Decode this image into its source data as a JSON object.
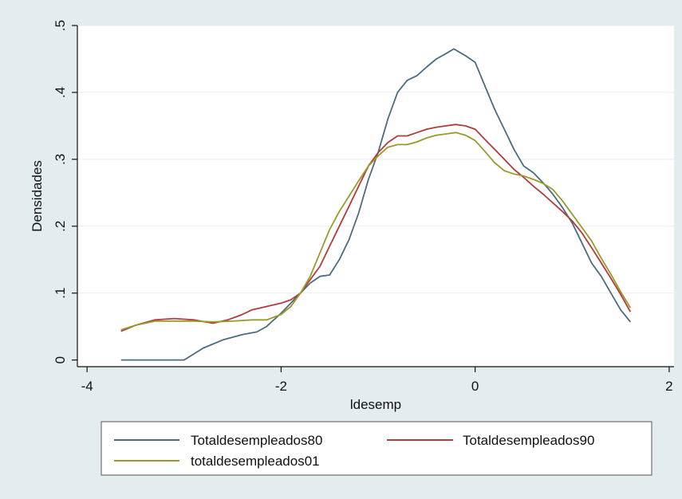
{
  "chart_data": {
    "type": "line",
    "title": "",
    "xlabel": "ldesemp",
    "ylabel": "Densidades",
    "xlim": [
      -4.1,
      2.05
    ],
    "ylim": [
      -0.01,
      0.5
    ],
    "x_ticks": [
      -4,
      -2,
      0,
      2
    ],
    "x_tick_labels": [
      "-4",
      "-2",
      "0",
      "2"
    ],
    "y_ticks": [
      0,
      0.1,
      0.2,
      0.3,
      0.4,
      0.5
    ],
    "y_tick_labels": [
      "0",
      ".1",
      ".2",
      ".3",
      ".4",
      ".5"
    ],
    "grid": true,
    "legend_position": "bottom",
    "series": [
      {
        "name": "Totaldesempleados80",
        "color": "#4a6b82",
        "points": [
          [
            -3.65,
            0.0
          ],
          [
            -3.3,
            0.0
          ],
          [
            -3.0,
            0.0
          ],
          [
            -2.8,
            0.018
          ],
          [
            -2.6,
            0.03
          ],
          [
            -2.4,
            0.038
          ],
          [
            -2.25,
            0.042
          ],
          [
            -2.15,
            0.05
          ],
          [
            -2.0,
            0.07
          ],
          [
            -1.9,
            0.085
          ],
          [
            -1.8,
            0.1
          ],
          [
            -1.7,
            0.115
          ],
          [
            -1.6,
            0.125
          ],
          [
            -1.5,
            0.127
          ],
          [
            -1.4,
            0.15
          ],
          [
            -1.3,
            0.18
          ],
          [
            -1.2,
            0.22
          ],
          [
            -1.1,
            0.27
          ],
          [
            -1.0,
            0.31
          ],
          [
            -0.9,
            0.36
          ],
          [
            -0.8,
            0.4
          ],
          [
            -0.7,
            0.418
          ],
          [
            -0.6,
            0.425
          ],
          [
            -0.5,
            0.438
          ],
          [
            -0.4,
            0.45
          ],
          [
            -0.3,
            0.458
          ],
          [
            -0.22,
            0.465
          ],
          [
            -0.1,
            0.455
          ],
          [
            0.0,
            0.445
          ],
          [
            0.1,
            0.41
          ],
          [
            0.2,
            0.375
          ],
          [
            0.3,
            0.345
          ],
          [
            0.4,
            0.315
          ],
          [
            0.5,
            0.29
          ],
          [
            0.6,
            0.28
          ],
          [
            0.7,
            0.265
          ],
          [
            0.8,
            0.248
          ],
          [
            0.9,
            0.228
          ],
          [
            1.0,
            0.205
          ],
          [
            1.1,
            0.175
          ],
          [
            1.2,
            0.145
          ],
          [
            1.3,
            0.125
          ],
          [
            1.4,
            0.1
          ],
          [
            1.5,
            0.075
          ],
          [
            1.6,
            0.057
          ]
        ]
      },
      {
        "name": "Totaldesempleados90",
        "color": "#b23b3b",
        "points": [
          [
            -3.65,
            0.043
          ],
          [
            -3.5,
            0.052
          ],
          [
            -3.3,
            0.06
          ],
          [
            -3.1,
            0.062
          ],
          [
            -2.9,
            0.06
          ],
          [
            -2.7,
            0.055
          ],
          [
            -2.55,
            0.06
          ],
          [
            -2.4,
            0.068
          ],
          [
            -2.3,
            0.075
          ],
          [
            -2.15,
            0.08
          ],
          [
            -2.0,
            0.085
          ],
          [
            -1.9,
            0.09
          ],
          [
            -1.8,
            0.1
          ],
          [
            -1.7,
            0.12
          ],
          [
            -1.6,
            0.14
          ],
          [
            -1.5,
            0.17
          ],
          [
            -1.4,
            0.2
          ],
          [
            -1.3,
            0.23
          ],
          [
            -1.2,
            0.26
          ],
          [
            -1.1,
            0.29
          ],
          [
            -1.0,
            0.31
          ],
          [
            -0.9,
            0.325
          ],
          [
            -0.8,
            0.335
          ],
          [
            -0.7,
            0.335
          ],
          [
            -0.6,
            0.34
          ],
          [
            -0.5,
            0.345
          ],
          [
            -0.4,
            0.348
          ],
          [
            -0.3,
            0.35
          ],
          [
            -0.2,
            0.352
          ],
          [
            -0.1,
            0.35
          ],
          [
            0.0,
            0.345
          ],
          [
            0.1,
            0.33
          ],
          [
            0.2,
            0.315
          ],
          [
            0.3,
            0.3
          ],
          [
            0.4,
            0.285
          ],
          [
            0.5,
            0.273
          ],
          [
            0.6,
            0.26
          ],
          [
            0.7,
            0.248
          ],
          [
            0.8,
            0.235
          ],
          [
            0.9,
            0.222
          ],
          [
            1.0,
            0.208
          ],
          [
            1.1,
            0.19
          ],
          [
            1.2,
            0.168
          ],
          [
            1.3,
            0.145
          ],
          [
            1.4,
            0.122
          ],
          [
            1.5,
            0.098
          ],
          [
            1.6,
            0.072
          ]
        ]
      },
      {
        "name": "totaldesempleados01",
        "color": "#9a9a2a",
        "points": [
          [
            -3.65,
            0.045
          ],
          [
            -3.5,
            0.052
          ],
          [
            -3.3,
            0.058
          ],
          [
            -3.1,
            0.058
          ],
          [
            -2.9,
            0.058
          ],
          [
            -2.7,
            0.057
          ],
          [
            -2.5,
            0.058
          ],
          [
            -2.3,
            0.06
          ],
          [
            -2.15,
            0.06
          ],
          [
            -2.0,
            0.068
          ],
          [
            -1.9,
            0.08
          ],
          [
            -1.8,
            0.1
          ],
          [
            -1.7,
            0.125
          ],
          [
            -1.6,
            0.16
          ],
          [
            -1.5,
            0.195
          ],
          [
            -1.4,
            0.222
          ],
          [
            -1.3,
            0.245
          ],
          [
            -1.2,
            0.268
          ],
          [
            -1.1,
            0.29
          ],
          [
            -1.0,
            0.305
          ],
          [
            -0.9,
            0.318
          ],
          [
            -0.8,
            0.322
          ],
          [
            -0.7,
            0.322
          ],
          [
            -0.6,
            0.326
          ],
          [
            -0.5,
            0.332
          ],
          [
            -0.4,
            0.336
          ],
          [
            -0.3,
            0.338
          ],
          [
            -0.2,
            0.34
          ],
          [
            -0.1,
            0.336
          ],
          [
            0.0,
            0.328
          ],
          [
            0.1,
            0.312
          ],
          [
            0.2,
            0.295
          ],
          [
            0.3,
            0.283
          ],
          [
            0.4,
            0.278
          ],
          [
            0.5,
            0.275
          ],
          [
            0.6,
            0.27
          ],
          [
            0.7,
            0.264
          ],
          [
            0.8,
            0.255
          ],
          [
            0.9,
            0.238
          ],
          [
            1.0,
            0.218
          ],
          [
            1.1,
            0.198
          ],
          [
            1.2,
            0.178
          ],
          [
            1.3,
            0.152
          ],
          [
            1.4,
            0.128
          ],
          [
            1.5,
            0.102
          ],
          [
            1.6,
            0.078
          ]
        ]
      }
    ]
  }
}
